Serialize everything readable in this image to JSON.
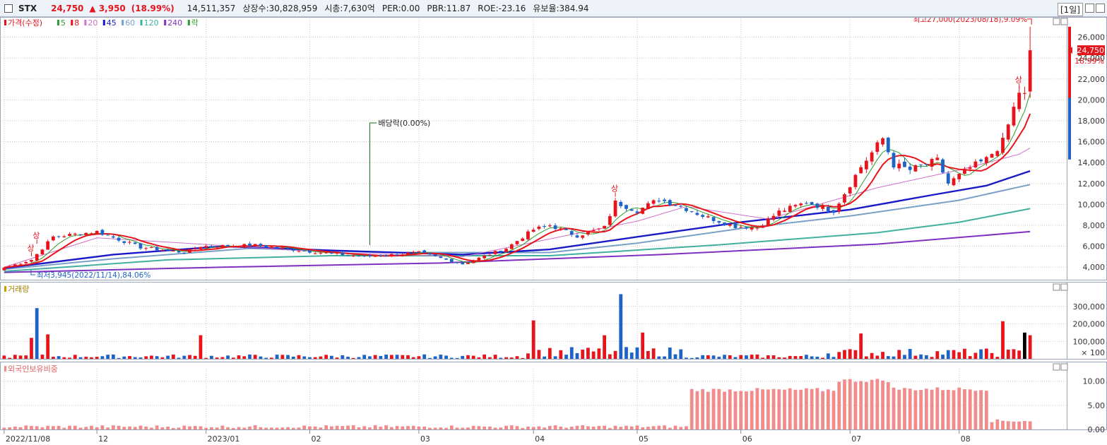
{
  "header": {
    "symbol": "STX",
    "price": "24,750",
    "change": "▲ 3,950",
    "change_pct": "(18.99%)",
    "volume": "14,511,357",
    "listed_shares": "상장수:30,828,959",
    "market_cap": "시총:7,630억",
    "per": "PER:0.00",
    "pbr": "PBR:11.87",
    "roe": "ROE:-23.16",
    "float_rate": "유보율:384.94",
    "period": "[1일]"
  },
  "colors": {
    "up": "#e8141c",
    "down": "#1e64c8",
    "ma5": "#2ca02c",
    "ma8": "#e8141c",
    "ma20": "#d070c8",
    "ma45": "#1a1ac8",
    "ma60": "#7aa0c8",
    "ma120": "#40b0a0",
    "ma240": "#8030c0",
    "foreign": "#f28c8c",
    "grid": "#c8c8c8"
  },
  "price_panel": {
    "legend": [
      {
        "label": "가격(수정)",
        "color": "#e8141c"
      },
      {
        "label": "5",
        "color": "#2ca02c"
      },
      {
        "label": "8",
        "color": "#e8141c"
      },
      {
        "label": "20",
        "color": "#d070c8"
      },
      {
        "label": "45",
        "color": "#1a1ac8"
      },
      {
        "label": "60",
        "color": "#7aa0c8"
      },
      {
        "label": "120",
        "color": "#40b0a0"
      },
      {
        "label": "240",
        "color": "#8030c0"
      },
      {
        "label": "락",
        "color": "#2ca02c"
      }
    ],
    "annotations": {
      "high": "최고27,000(2023/08/18),9.09%",
      "low": "최저3,945(2022/11/14),84.06%",
      "dividend": "배당락(0.00%)",
      "limit_up": "상"
    },
    "current_price_label": "24,750",
    "current_pct_label": "18.99%"
  },
  "volume_panel": {
    "title": "거래량"
  },
  "foreign_panel": {
    "title": "외국인보유비중"
  },
  "chart_data": [
    {
      "type": "candlestick",
      "title": "",
      "y_ticks": [
        4000,
        6000,
        8000,
        10000,
        12000,
        14000,
        16000,
        18000,
        20000,
        22000,
        24000,
        26000
      ],
      "ylim": [
        2800,
        27800
      ],
      "x_tick_labels": [
        {
          "label": "2022/11/08",
          "index": 0
        },
        {
          "label": "12",
          "index": 17
        },
        {
          "label": "2023/01",
          "index": 37
        },
        {
          "label": "02",
          "index": 56
        },
        {
          "label": "03",
          "index": 76
        },
        {
          "label": "04",
          "index": 97
        },
        {
          "label": "05",
          "index": 116
        },
        {
          "label": "06",
          "index": 135
        },
        {
          "label": "07",
          "index": 155
        },
        {
          "label": "08",
          "index": 175
        }
      ],
      "key_points": [
        {
          "index": 0,
          "close": 3950
        },
        {
          "index": 5,
          "close": 4700
        },
        {
          "index": 9,
          "close": 6900
        },
        {
          "index": 17,
          "close": 7400
        },
        {
          "index": 25,
          "close": 5900
        },
        {
          "index": 33,
          "close": 5400
        },
        {
          "index": 36,
          "close": 6000
        },
        {
          "index": 46,
          "close": 6100
        },
        {
          "index": 56,
          "close": 5500
        },
        {
          "index": 66,
          "close": 5000
        },
        {
          "index": 76,
          "close": 5400
        },
        {
          "index": 84,
          "close": 4300
        },
        {
          "index": 92,
          "close": 5800
        },
        {
          "index": 97,
          "close": 7600
        },
        {
          "index": 100,
          "close": 8000
        },
        {
          "index": 105,
          "close": 7000
        },
        {
          "index": 110,
          "close": 7800
        },
        {
          "index": 112,
          "close": 10200
        },
        {
          "index": 116,
          "close": 9400
        },
        {
          "index": 120,
          "close": 10500
        },
        {
          "index": 124,
          "close": 9800
        },
        {
          "index": 128,
          "close": 8900
        },
        {
          "index": 134,
          "close": 7900
        },
        {
          "index": 138,
          "close": 7800
        },
        {
          "index": 142,
          "close": 9300
        },
        {
          "index": 147,
          "close": 10200
        },
        {
          "index": 152,
          "close": 9400
        },
        {
          "index": 157,
          "close": 13600
        },
        {
          "index": 161,
          "close": 16300
        },
        {
          "index": 163,
          "close": 13800
        },
        {
          "index": 166,
          "close": 13300
        },
        {
          "index": 171,
          "close": 14200
        },
        {
          "index": 173,
          "close": 12000
        },
        {
          "index": 177,
          "close": 13500
        },
        {
          "index": 180,
          "close": 14300
        },
        {
          "index": 183,
          "close": 16000
        },
        {
          "index": 186,
          "close": 20800
        },
        {
          "index": 187,
          "close": 20400
        },
        {
          "index": 188,
          "close": 24750
        }
      ],
      "moving_averages": {
        "ma20": [
          [
            0,
            4000
          ],
          [
            17,
            6800
          ],
          [
            30,
            6400
          ],
          [
            60,
            5400
          ],
          [
            84,
            5000
          ],
          [
            100,
            6700
          ],
          [
            116,
            8400
          ],
          [
            125,
            9800
          ],
          [
            140,
            8600
          ],
          [
            160,
            11600
          ],
          [
            175,
            13300
          ],
          [
            186,
            14800
          ],
          [
            188,
            15400
          ]
        ],
        "ma45": [
          [
            0,
            3900
          ],
          [
            20,
            5200
          ],
          [
            40,
            6000
          ],
          [
            60,
            5600
          ],
          [
            84,
            5200
          ],
          [
            100,
            5700
          ],
          [
            116,
            6900
          ],
          [
            135,
            8300
          ],
          [
            155,
            9500
          ],
          [
            170,
            10900
          ],
          [
            180,
            11800
          ],
          [
            188,
            13200
          ]
        ],
        "ma60": [
          [
            0,
            3800
          ],
          [
            20,
            4800
          ],
          [
            45,
            5800
          ],
          [
            70,
            5400
          ],
          [
            100,
            5400
          ],
          [
            116,
            6300
          ],
          [
            135,
            7700
          ],
          [
            155,
            8900
          ],
          [
            175,
            10400
          ],
          [
            188,
            11900
          ]
        ],
        "ma120": [
          [
            0,
            3600
          ],
          [
            30,
            4700
          ],
          [
            60,
            5100
          ],
          [
            100,
            5100
          ],
          [
            130,
            6100
          ],
          [
            160,
            7300
          ],
          [
            175,
            8300
          ],
          [
            188,
            9600
          ]
        ],
        "ma240": [
          [
            0,
            3500
          ],
          [
            40,
            4000
          ],
          [
            80,
            4400
          ],
          [
            120,
            5200
          ],
          [
            160,
            6200
          ],
          [
            188,
            7400
          ]
        ]
      },
      "last_candle": {
        "open": 20800,
        "high": 27000,
        "low": 20200,
        "close": 24750
      }
    },
    {
      "type": "bar",
      "title": "",
      "y_ticks": [
        100000,
        200000,
        300000
      ],
      "y_tick_labels": [
        "× 100",
        "100,000",
        "200,000",
        "300,000"
      ],
      "ylim": [
        0,
        400000
      ],
      "notable_bars": [
        {
          "index": 5,
          "value": 120000
        },
        {
          "index": 6,
          "value": 290000
        },
        {
          "index": 8,
          "value": 140000
        },
        {
          "index": 36,
          "value": 135000
        },
        {
          "index": 97,
          "value": 220000
        },
        {
          "index": 110,
          "value": 135000
        },
        {
          "index": 113,
          "value": 370000
        },
        {
          "index": 117,
          "value": 150000
        },
        {
          "index": 157,
          "value": 145000
        },
        {
          "index": 183,
          "value": 215000
        },
        {
          "index": 187,
          "value": 150000
        },
        {
          "index": 188,
          "value": 135000
        }
      ]
    },
    {
      "type": "bar",
      "title": "",
      "y_ticks": [
        0,
        5,
        10
      ],
      "y_tick_labels": [
        "0.00",
        "5.00",
        "10.00"
      ],
      "ylim": [
        0,
        12.6
      ],
      "segments": [
        {
          "from_index": 0,
          "to_index": 125,
          "value": 0.6
        },
        {
          "from_index": 126,
          "to_index": 152,
          "value": 8.2
        },
        {
          "from_index": 153,
          "to_index": 162,
          "value": 10.2
        },
        {
          "from_index": 163,
          "to_index": 180,
          "value": 8.4
        },
        {
          "from_index": 181,
          "to_index": 188,
          "value": 1.8
        }
      ]
    }
  ]
}
